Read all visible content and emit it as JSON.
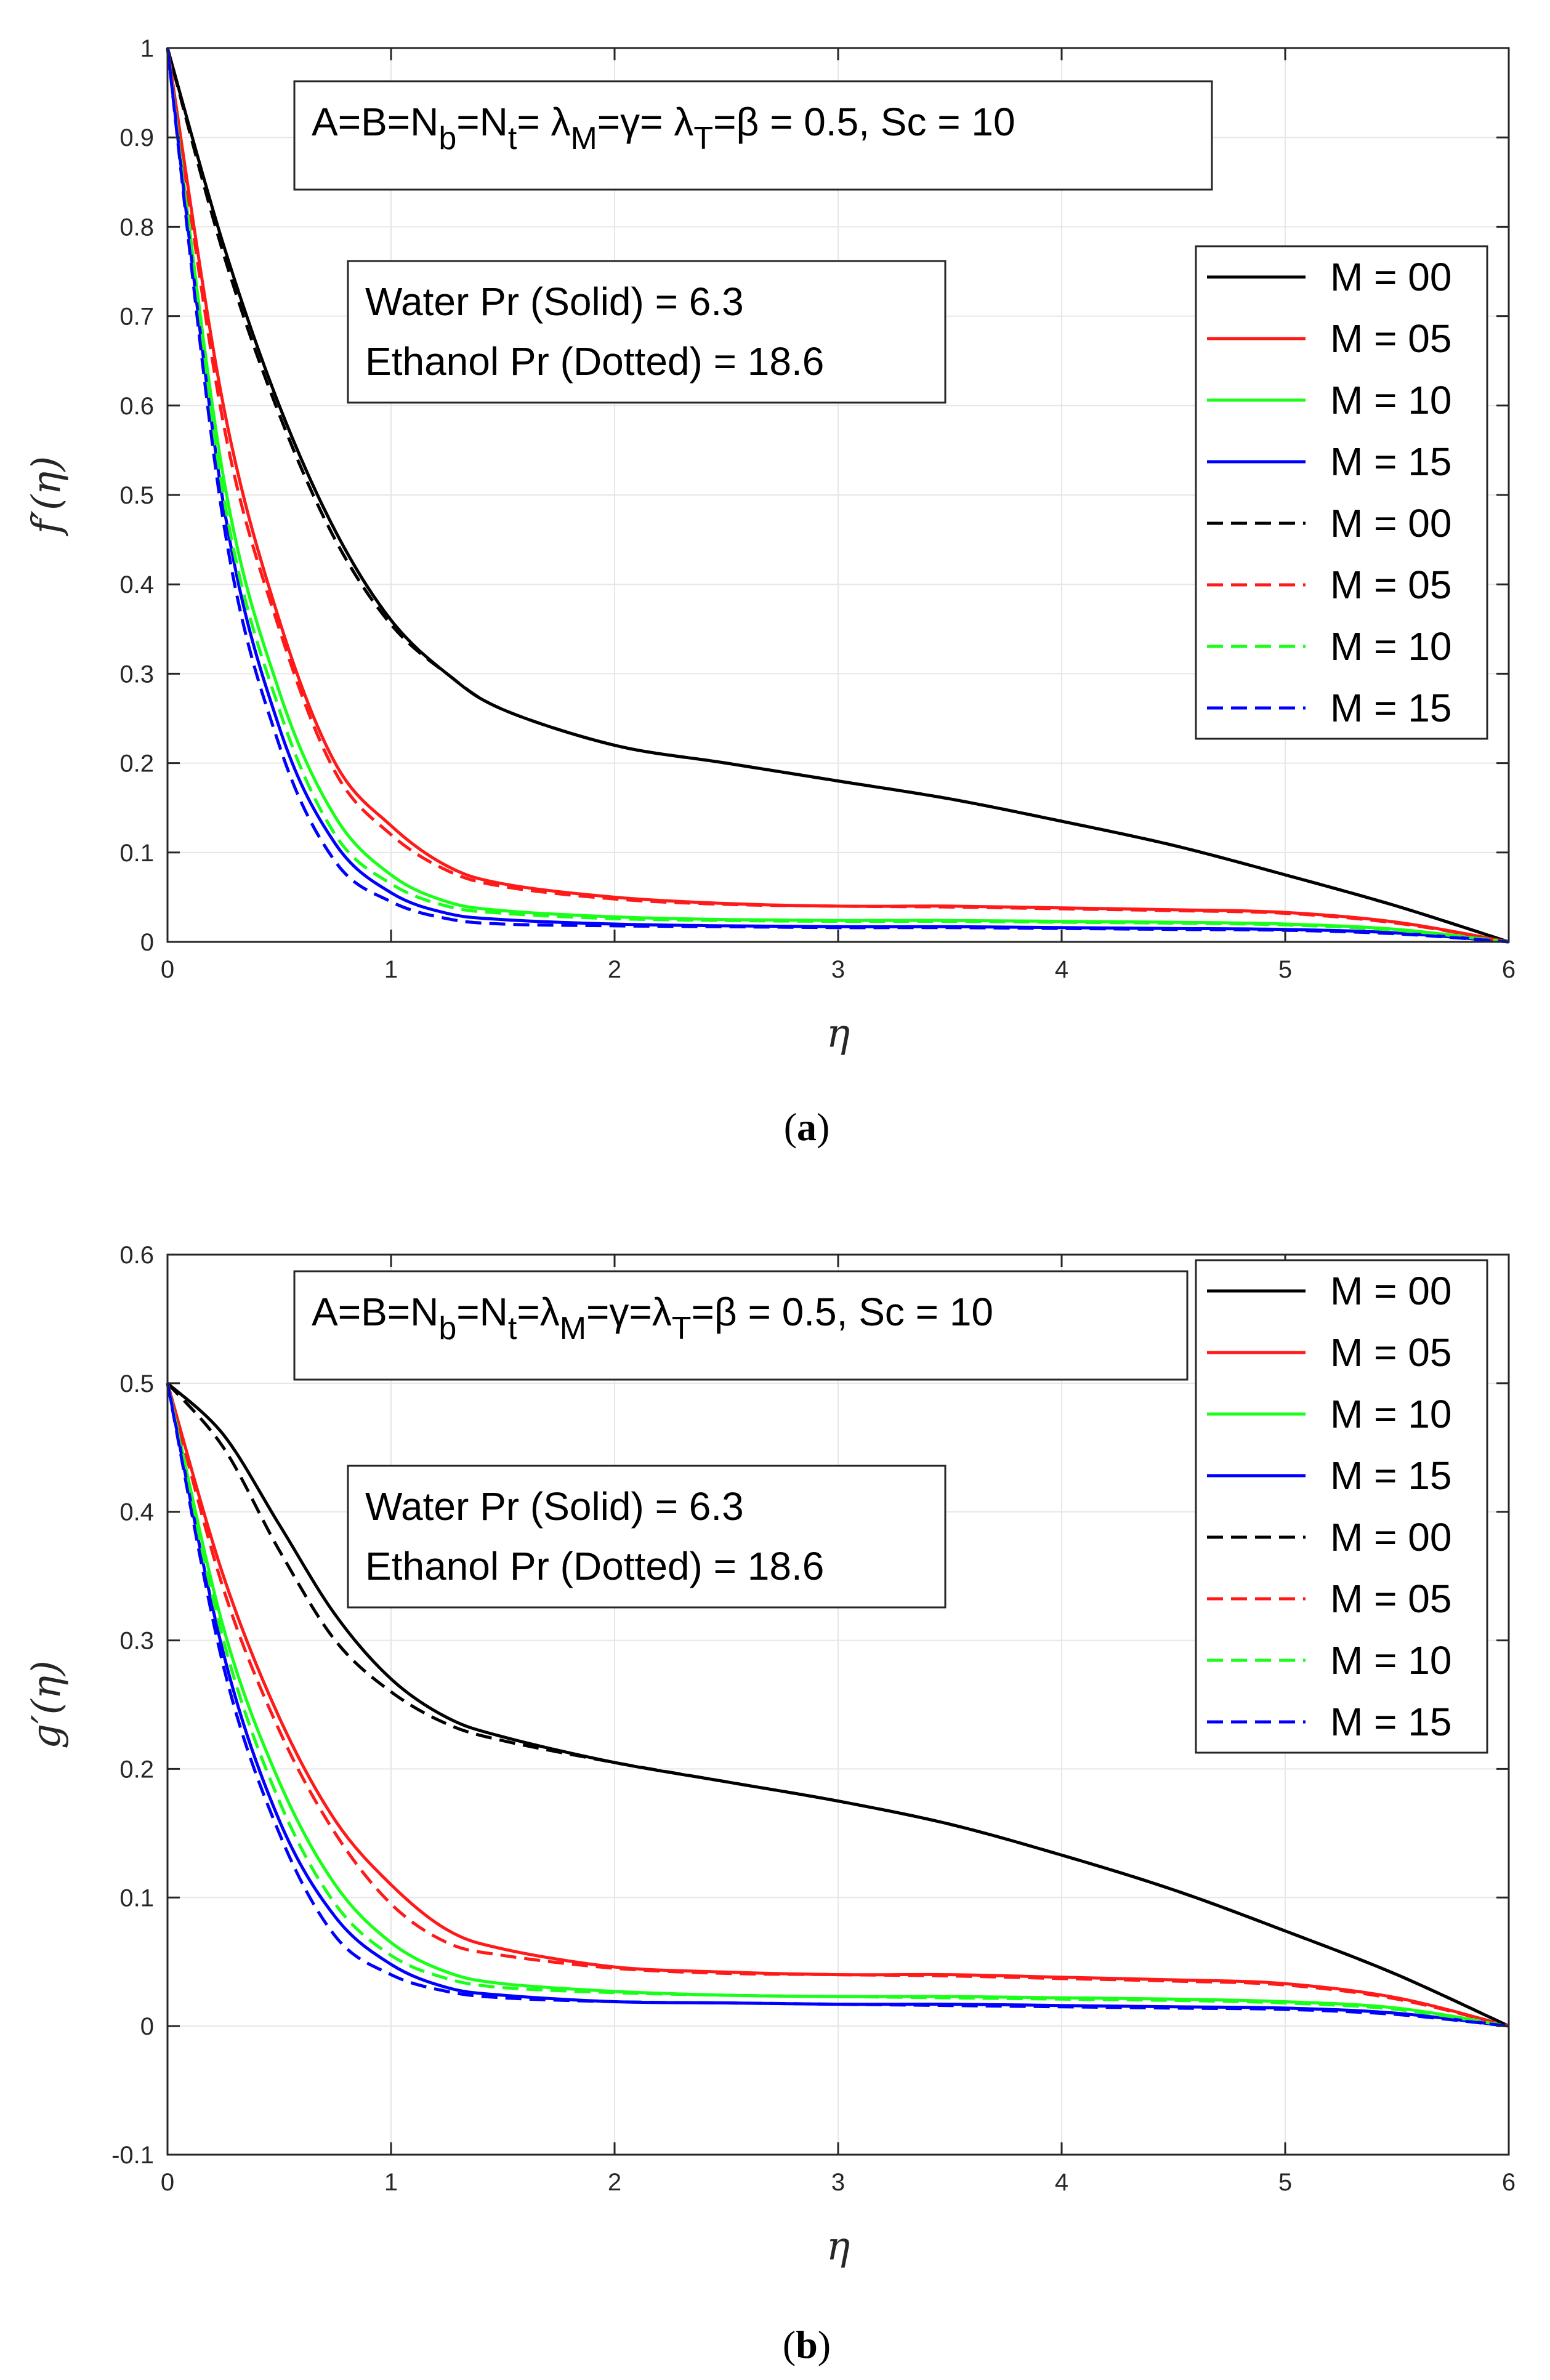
{
  "colors": {
    "black": "#000000",
    "red": "#ff1a1a",
    "green": "#1aff1a",
    "blue": "#0000ff",
    "grid": "#e6e6e6",
    "axis": "#262626"
  },
  "chart_data": [
    {
      "id": "a",
      "type": "line",
      "caption_letter": "a",
      "xlabel": "η",
      "ylabel": "f′(η)",
      "xlim": [
        0,
        6
      ],
      "ylim": [
        0,
        1
      ],
      "xticks": [
        0,
        1,
        2,
        3,
        4,
        5,
        6
      ],
      "xtick_labels": [
        "0",
        "1",
        "2",
        "3",
        "4",
        "5",
        "6"
      ],
      "yticks": [
        0,
        0.1,
        0.2,
        0.3,
        0.4,
        0.5,
        0.6,
        0.7,
        0.8,
        0.9,
        1
      ],
      "ytick_labels": [
        "0",
        "0.1",
        "0.2",
        "0.3",
        "0.4",
        "0.5",
        "0.6",
        "0.7",
        "0.8",
        "0.9",
        "1"
      ],
      "grid": true,
      "params_box": {
        "base": "A=B=N",
        "sub1": "b",
        "mid1": "=N",
        "sub2": "t",
        "mid2": "= λ",
        "sub3": "M",
        "mid3": "=γ= λ",
        "sub4": "T",
        "tail": "=β = 0.5, Sc = 10"
      },
      "fluid_box": {
        "line1": "Water Pr (Solid) = 6.3",
        "line2": "Ethanol Pr (Dotted) = 18.6"
      },
      "legend_position": "right",
      "x": [
        0,
        0.25,
        0.5,
        0.75,
        1,
        1.25,
        1.5,
        2,
        2.5,
        3,
        3.5,
        4,
        4.5,
        5,
        5.5,
        6
      ],
      "series": [
        {
          "name": "M = 00",
          "color": "black",
          "style": "solid",
          "values": [
            1.0,
            0.78,
            0.6,
            0.46,
            0.36,
            0.3,
            0.26,
            0.22,
            0.2,
            0.18,
            0.16,
            0.135,
            0.108,
            0.075,
            0.04,
            0.0
          ]
        },
        {
          "name": "M = 05",
          "color": "red",
          "style": "solid",
          "values": [
            1.0,
            0.6,
            0.36,
            0.2,
            0.13,
            0.085,
            0.065,
            0.05,
            0.043,
            0.04,
            0.04,
            0.038,
            0.036,
            0.033,
            0.022,
            0.0
          ]
        },
        {
          "name": "M = 10",
          "color": "green",
          "style": "solid",
          "values": [
            1.0,
            0.52,
            0.28,
            0.14,
            0.075,
            0.045,
            0.035,
            0.028,
            0.025,
            0.024,
            0.024,
            0.023,
            0.022,
            0.02,
            0.014,
            0.0
          ]
        },
        {
          "name": "M = 15",
          "color": "blue",
          "style": "solid",
          "values": [
            1.0,
            0.49,
            0.24,
            0.11,
            0.055,
            0.032,
            0.025,
            0.02,
            0.018,
            0.017,
            0.017,
            0.016,
            0.015,
            0.014,
            0.01,
            0.0
          ]
        },
        {
          "name": "M = 00",
          "color": "black",
          "style": "dashed",
          "values": [
            1.0,
            0.77,
            0.59,
            0.45,
            0.355,
            0.3,
            0.26,
            0.22,
            0.2,
            0.18,
            0.16,
            0.135,
            0.108,
            0.075,
            0.04,
            0.0
          ]
        },
        {
          "name": "M = 05",
          "color": "red",
          "style": "dashed",
          "values": [
            1.0,
            0.58,
            0.35,
            0.19,
            0.12,
            0.08,
            0.062,
            0.048,
            0.042,
            0.04,
            0.039,
            0.037,
            0.035,
            0.032,
            0.021,
            0.0
          ]
        },
        {
          "name": "M = 10",
          "color": "green",
          "style": "dashed",
          "values": [
            1.0,
            0.5,
            0.26,
            0.12,
            0.065,
            0.04,
            0.032,
            0.026,
            0.024,
            0.023,
            0.023,
            0.022,
            0.021,
            0.019,
            0.013,
            0.0
          ]
        },
        {
          "name": "M = 15",
          "color": "blue",
          "style": "dashed",
          "values": [
            1.0,
            0.47,
            0.22,
            0.09,
            0.045,
            0.026,
            0.02,
            0.018,
            0.017,
            0.016,
            0.016,
            0.015,
            0.014,
            0.013,
            0.009,
            0.0
          ]
        }
      ]
    },
    {
      "id": "b",
      "type": "line",
      "caption_letter": "b",
      "xlabel": "η",
      "ylabel": "g′(η)",
      "xlim": [
        0,
        6
      ],
      "ylim": [
        -0.1,
        0.6
      ],
      "xticks": [
        0,
        1,
        2,
        3,
        4,
        5,
        6
      ],
      "xtick_labels": [
        "0",
        "1",
        "2",
        "3",
        "4",
        "5",
        "6"
      ],
      "yticks": [
        -0.1,
        0,
        0.1,
        0.2,
        0.3,
        0.4,
        0.5,
        0.6
      ],
      "ytick_labels": [
        "-0.1",
        "0",
        "0.1",
        "0.2",
        "0.3",
        "0.4",
        "0.5",
        "0.6"
      ],
      "grid": true,
      "params_box": {
        "base": "A=B=N",
        "sub1": "b",
        "mid1": "=N",
        "sub2": "t",
        "mid2": "=λ",
        "sub3": "M",
        "mid3": "=γ=λ",
        "sub4": "T",
        "tail": "=β = 0.5, Sc = 10"
      },
      "fluid_box": {
        "line1": "Water Pr (Solid) = 6.3",
        "line2": "Ethanol Pr (Dotted) = 18.6"
      },
      "legend_position": "top-right",
      "x": [
        0,
        0.25,
        0.5,
        0.75,
        1,
        1.25,
        1.5,
        2,
        2.5,
        3,
        3.5,
        4,
        4.5,
        5,
        5.5,
        6
      ],
      "series": [
        {
          "name": "M = 00",
          "color": "black",
          "style": "solid",
          "values": [
            0.5,
            0.46,
            0.39,
            0.32,
            0.27,
            0.24,
            0.225,
            0.205,
            0.19,
            0.175,
            0.157,
            0.133,
            0.106,
            0.074,
            0.04,
            0.0
          ]
        },
        {
          "name": "M = 05",
          "color": "red",
          "style": "solid",
          "values": [
            0.5,
            0.35,
            0.24,
            0.16,
            0.11,
            0.075,
            0.06,
            0.046,
            0.042,
            0.04,
            0.04,
            0.038,
            0.036,
            0.033,
            0.022,
            0.0
          ]
        },
        {
          "name": "M = 10",
          "color": "green",
          "style": "solid",
          "values": [
            0.5,
            0.31,
            0.19,
            0.11,
            0.065,
            0.042,
            0.033,
            0.027,
            0.024,
            0.023,
            0.023,
            0.022,
            0.021,
            0.019,
            0.014,
            0.0
          ]
        },
        {
          "name": "M = 15",
          "color": "blue",
          "style": "solid",
          "values": [
            0.5,
            0.29,
            0.16,
            0.085,
            0.048,
            0.03,
            0.024,
            0.019,
            0.018,
            0.017,
            0.017,
            0.016,
            0.015,
            0.014,
            0.01,
            0.0
          ]
        },
        {
          "name": "M = 00",
          "color": "black",
          "style": "dashed",
          "values": [
            0.5,
            0.45,
            0.37,
            0.3,
            0.26,
            0.235,
            0.222,
            0.205,
            0.19,
            0.175,
            0.157,
            0.133,
            0.106,
            0.074,
            0.04,
            0.0
          ]
        },
        {
          "name": "M = 05",
          "color": "red",
          "style": "dashed",
          "values": [
            0.5,
            0.34,
            0.23,
            0.15,
            0.095,
            0.065,
            0.055,
            0.045,
            0.041,
            0.04,
            0.039,
            0.037,
            0.035,
            0.032,
            0.021,
            0.0
          ]
        },
        {
          "name": "M = 10",
          "color": "green",
          "style": "dashed",
          "values": [
            0.5,
            0.3,
            0.175,
            0.095,
            0.055,
            0.037,
            0.03,
            0.026,
            0.024,
            0.023,
            0.022,
            0.021,
            0.02,
            0.018,
            0.013,
            0.0
          ]
        },
        {
          "name": "M = 15",
          "color": "blue",
          "style": "dashed",
          "values": [
            0.5,
            0.28,
            0.15,
            0.07,
            0.04,
            0.027,
            0.022,
            0.019,
            0.018,
            0.017,
            0.016,
            0.015,
            0.014,
            0.013,
            0.009,
            0.0
          ]
        }
      ]
    }
  ]
}
